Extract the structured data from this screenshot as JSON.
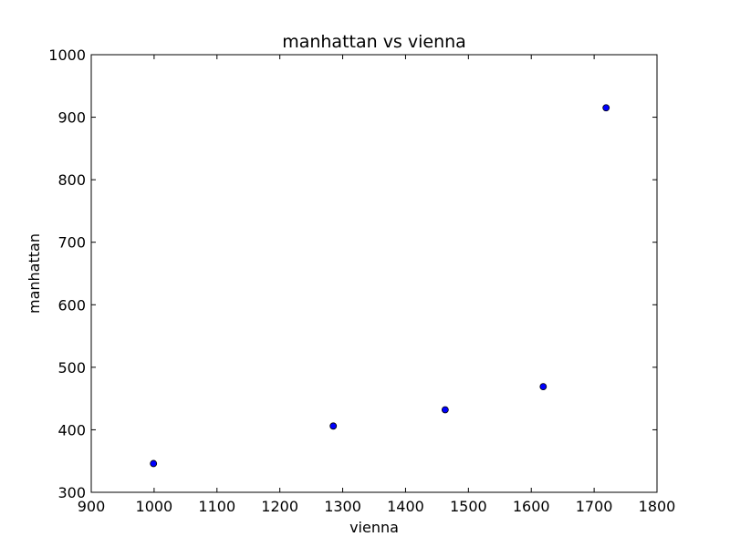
{
  "chart_data": {
    "type": "scatter",
    "title": "manhattan vs vienna",
    "xlabel": "vienna",
    "ylabel": "manhattan",
    "xlim": [
      900,
      1800
    ],
    "ylim": [
      300,
      1000
    ],
    "xticks": [
      900,
      1000,
      1100,
      1200,
      1300,
      1400,
      1500,
      1600,
      1700,
      1800
    ],
    "yticks": [
      300,
      400,
      500,
      600,
      700,
      800,
      900,
      1000
    ],
    "grid": false,
    "legend": "none",
    "marker_color": "#0000ff",
    "marker_edge_color": "#000000",
    "series": [
      {
        "x": [
          999,
          1285,
          1463,
          1619,
          1719
        ],
        "y": [
          346,
          406,
          432,
          469,
          915
        ]
      }
    ]
  }
}
